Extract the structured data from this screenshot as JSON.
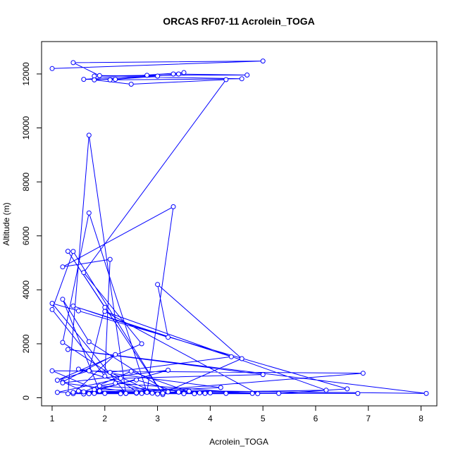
{
  "chart_data": {
    "type": "line",
    "title": "ORCAS RF07-11 Acrolein_TOGA",
    "xlabel": "Acrolein_TOGA",
    "ylabel": "Altitude (m)",
    "xlim": [
      0.8,
      8.3
    ],
    "ylim": [
      -300,
      13200
    ],
    "xticks": [
      1,
      2,
      3,
      4,
      5,
      6,
      7,
      8
    ],
    "yticks": [
      0,
      2000,
      4000,
      6000,
      8000,
      10000,
      12000
    ],
    "grid": false,
    "color": "#0000ff",
    "series": [
      {
        "marker": "open-circle",
        "x": [
          1.0,
          5.0,
          1.4,
          1.9,
          3.0,
          2.2,
          1.6,
          3.5,
          3.3,
          4.7,
          2.8,
          1.8,
          4.6,
          2.1,
          3.4,
          1.8,
          2.5,
          4.3,
          1.6,
          2.7,
          1.1,
          1.7,
          2.0,
          1.3,
          3.1,
          1.4,
          1.0,
          2.0,
          2.1,
          1.2,
          3.3,
          2.8,
          1.7,
          1.2,
          2.6,
          6.9,
          1.0,
          1.9,
          1.2,
          1.7,
          3.2,
          2.3,
          2.9,
          1.3,
          1.7,
          2.4,
          3.1,
          4.6,
          3.0,
          3.2,
          1.4,
          4.4,
          2.1,
          3.0,
          1.5,
          4.2,
          1.7,
          1.2,
          2.2,
          1.4,
          4.9,
          2.0,
          6.2,
          2.6,
          1.1,
          2.3,
          5.0,
          1.3,
          8.1,
          1.8,
          2.6,
          3.4,
          1.5,
          3.8,
          2.7,
          1.2,
          3.2,
          1.6,
          2.9,
          3.6,
          5.3,
          6.6,
          1.5,
          1.0,
          2.4,
          3.9,
          6.8,
          4.0,
          1.9,
          2.2,
          4.8,
          1.6,
          2.5,
          3.7,
          1.8,
          2.6,
          4.3,
          1.4,
          3.5,
          2.0
        ],
        "y": [
          12200,
          12480,
          12420,
          11940,
          11920,
          11800,
          11800,
          12050,
          12000,
          11960,
          11950,
          11920,
          11820,
          11780,
          12000,
          11780,
          11620,
          11790,
          4640,
          2000,
          650,
          1000,
          3350,
          5430,
          120,
          5420,
          3270,
          800,
          5130,
          4850,
          7080,
          200,
          6850,
          2050,
          230,
          910,
          1000,
          250,
          3650,
          2080,
          220,
          150,
          200,
          150,
          9730,
          160,
          170,
          1450,
          4200,
          2240,
          3400,
          1520,
          940,
          140,
          1060,
          380,
          150,
          590,
          1600,
          150,
          150,
          3200,
          280,
          170,
          200,
          720,
          860,
          1790,
          160,
          300,
          660,
          210,
          250,
          180,
          160,
          550,
          1020,
          140,
          170,
          240,
          160,
          330,
          3220,
          3500,
          160,
          160,
          160,
          180,
          440,
          540,
          160,
          220,
          980,
          150,
          160,
          180,
          160,
          200,
          150,
          160
        ]
      }
    ]
  }
}
